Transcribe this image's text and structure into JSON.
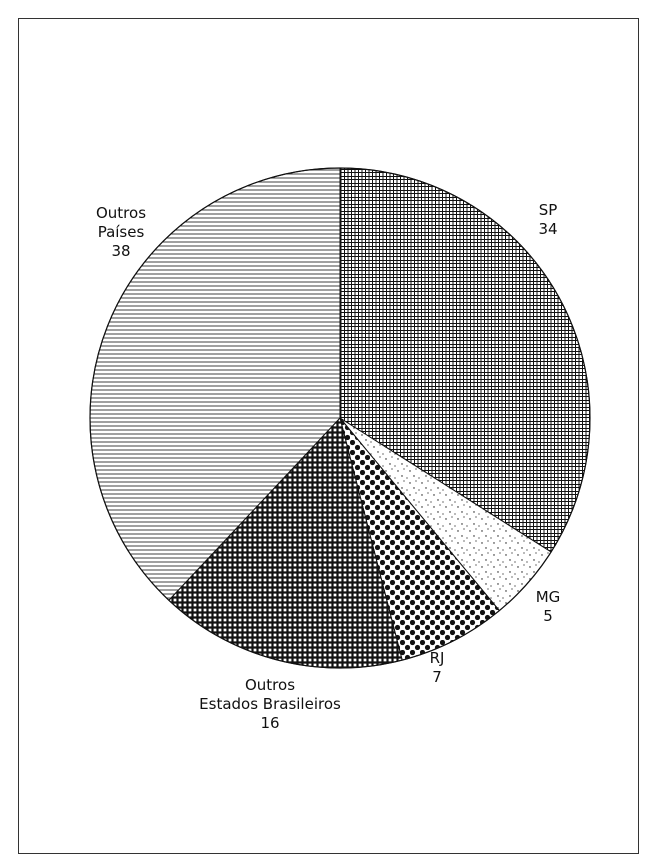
{
  "chart_data": {
    "type": "pie",
    "title": "",
    "slices": [
      {
        "key": "sp",
        "name": "SP",
        "value": 34,
        "pattern": "crosshatch-dense"
      },
      {
        "key": "mg",
        "name": "MG",
        "value": 5,
        "pattern": "stipple"
      },
      {
        "key": "rj",
        "name": "RJ",
        "value": 7,
        "pattern": "large-dots"
      },
      {
        "key": "oeb",
        "name_lines": [
          "Outros",
          "Estados Brasileiros"
        ],
        "value": 16,
        "pattern": "grid"
      },
      {
        "key": "op",
        "name_lines": [
          "Outros",
          "Países"
        ],
        "value": 38,
        "pattern": "horizontal-lines"
      }
    ],
    "start_angle_deg": 0,
    "direction": "clockwise",
    "legend": "none",
    "colors": {
      "ink": "#111111",
      "background": "#ffffff"
    }
  }
}
